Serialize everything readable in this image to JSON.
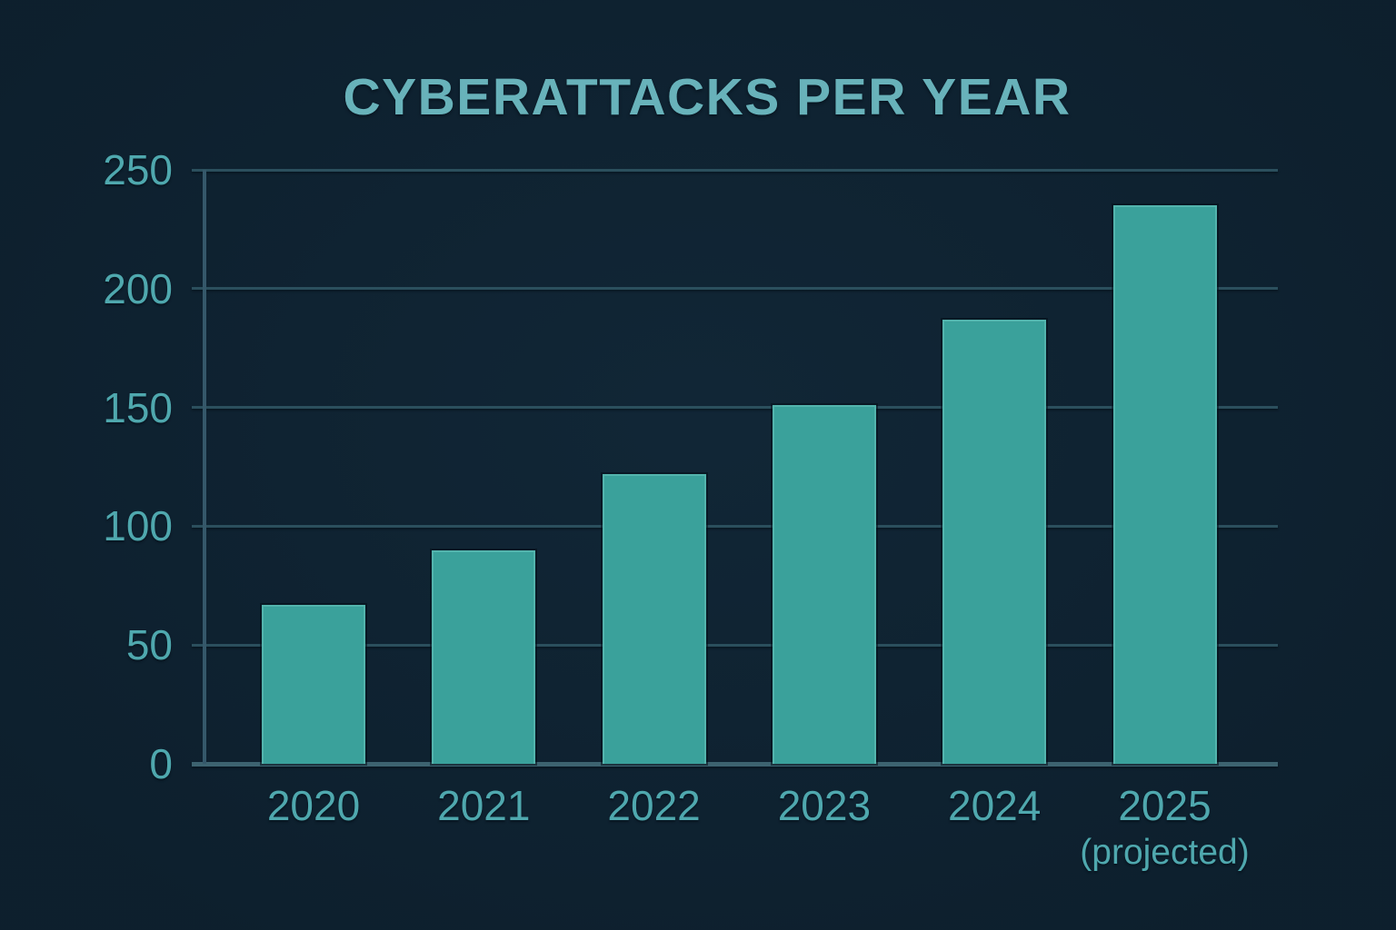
{
  "chart_data": {
    "type": "bar",
    "title": "CYBERATTACKS PER YEAR",
    "categories": [
      "2020",
      "2021",
      "2022",
      "2023",
      "2024",
      "2025"
    ],
    "category_sublabels": [
      "",
      "",
      "",
      "",
      "",
      "(projected)"
    ],
    "values": [
      67,
      90,
      122,
      151,
      187,
      235
    ],
    "xlabel": "",
    "ylabel": "",
    "ylim": [
      0,
      250
    ],
    "yticks": [
      0,
      50,
      100,
      150,
      200,
      250
    ],
    "grid": true,
    "legend": "none",
    "colors": {
      "background": "#0e2231",
      "bar_fill": "#3aa19b",
      "bar_edge_highlight": "#85d6cd",
      "title_text": "#68b2ba",
      "tick_label_text": "#4fa8ae",
      "gridline": "#2b4f5d",
      "baseline": "#3d6370",
      "y_axis_line": "#35586a"
    }
  }
}
